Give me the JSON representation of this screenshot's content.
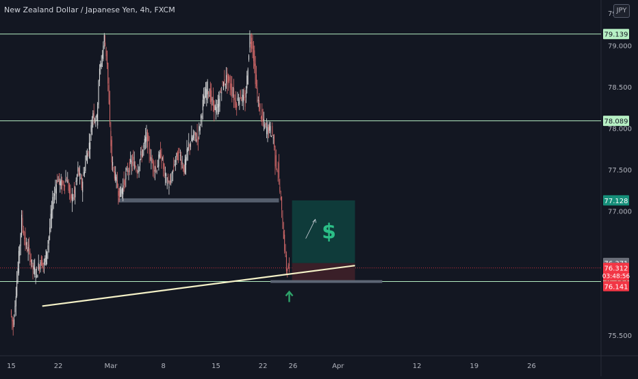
{
  "header": {
    "title": "New Zealand Dollar / Japanese Yen, 4h, FXCM",
    "currency_button": "JPY"
  },
  "colors": {
    "background": "#131722",
    "axis_text": "#b2b5be",
    "level_line": "#b7f0c4",
    "level_badge": "#b7f0c4",
    "up_candle": "#e6e6e6",
    "down_candle": "#d86b6b",
    "target_zone": "#0f3b3a",
    "stop_zone": "#3a1f28",
    "zone_border": "#5d6675",
    "trendline": "#f5f2c8",
    "arrow_up": "#2ea36a",
    "price_red": "#f23645",
    "last_price_bg": "#6b6f7a",
    "target_badge": "#168f7a"
  },
  "chart_data": {
    "type": "candlestick",
    "title": "New Zealand Dollar / Japanese Yen, 4h, FXCM",
    "ylim": [
      75.25,
      79.55
    ],
    "y_ticks": [
      "79.000",
      "78.500",
      "78.000",
      "77.500",
      "77.000",
      "75.500"
    ],
    "y_ticks_values": [
      79.0,
      78.5,
      78.0,
      77.5,
      77.0,
      75.5
    ],
    "y_top_partial_label": "79",
    "x_ticks": [
      "15",
      "22",
      "Mar",
      "8",
      "15",
      "22",
      "26",
      "Apr",
      "12",
      "19",
      "26"
    ],
    "x_tick_index": [
      0,
      50,
      106,
      162,
      218,
      268,
      300,
      348,
      432,
      493,
      554
    ],
    "xlim": [
      -12,
      628
    ],
    "horizontal_levels": [
      {
        "label": "79.139",
        "value": 79.139
      },
      {
        "label": "78.089",
        "value": 78.089
      },
      {
        "label": "76.147",
        "value": 76.147
      }
    ],
    "price_labels": [
      {
        "label": "77.128",
        "value": 77.128,
        "style": "target"
      },
      {
        "label": "76.371",
        "value": 76.371,
        "style": "last"
      },
      {
        "label": "76.312",
        "value": 76.312,
        "style": "current",
        "sub": "03:48:56"
      },
      {
        "label": "76.141",
        "value": 76.141,
        "style": "bid"
      }
    ],
    "current_price": 76.312,
    "support_zone": {
      "value": 77.128,
      "x0": 114,
      "x1": 285
    },
    "target_zone": {
      "y_top": 77.128,
      "y_bottom": 76.37,
      "x0": 299,
      "x1": 366
    },
    "stop_zone": {
      "y_top": 76.37,
      "y_bottom": 76.147,
      "x0": 299,
      "x1": 366
    },
    "entry_line": {
      "value": 76.147,
      "x0": 276,
      "x1": 395
    },
    "trendline": {
      "start": [
        33,
        75.85
      ],
      "end": [
        366,
        76.34
      ]
    },
    "anchors": [
      [
        0,
        75.8
      ],
      [
        3,
        75.6
      ],
      [
        5,
        75.9
      ],
      [
        8,
        76.3
      ],
      [
        12,
        76.9
      ],
      [
        16,
        76.6
      ],
      [
        20,
        76.5
      ],
      [
        24,
        76.3
      ],
      [
        28,
        76.25
      ],
      [
        32,
        76.4
      ],
      [
        36,
        76.35
      ],
      [
        40,
        76.6
      ],
      [
        45,
        77.1
      ],
      [
        50,
        77.4
      ],
      [
        55,
        77.3
      ],
      [
        60,
        77.4
      ],
      [
        64,
        77.15
      ],
      [
        68,
        77.2
      ],
      [
        72,
        77.5
      ],
      [
        76,
        77.3
      ],
      [
        80,
        77.6
      ],
      [
        84,
        77.8
      ],
      [
        88,
        78.2
      ],
      [
        92,
        78.1
      ],
      [
        94,
        78.6
      ],
      [
        98,
        78.9
      ],
      [
        100,
        79.1
      ],
      [
        103,
        78.8
      ],
      [
        106,
        78.0
      ],
      [
        108,
        77.6
      ],
      [
        112,
        77.4
      ],
      [
        116,
        77.2
      ],
      [
        120,
        77.3
      ],
      [
        125,
        77.5
      ],
      [
        130,
        77.6
      ],
      [
        135,
        77.5
      ],
      [
        140,
        77.7
      ],
      [
        145,
        77.9
      ],
      [
        150,
        77.6
      ],
      [
        155,
        77.5
      ],
      [
        160,
        77.7
      ],
      [
        165,
        77.4
      ],
      [
        170,
        77.3
      ],
      [
        175,
        77.6
      ],
      [
        180,
        77.7
      ],
      [
        185,
        77.5
      ],
      [
        190,
        77.8
      ],
      [
        195,
        77.9
      ],
      [
        200,
        77.9
      ],
      [
        205,
        78.3
      ],
      [
        210,
        78.5
      ],
      [
        215,
        78.3
      ],
      [
        220,
        78.2
      ],
      [
        225,
        78.5
      ],
      [
        230,
        78.6
      ],
      [
        235,
        78.5
      ],
      [
        240,
        78.3
      ],
      [
        245,
        78.4
      ],
      [
        250,
        78.3
      ],
      [
        252,
        78.6
      ],
      [
        255,
        79.1
      ],
      [
        258,
        79.0
      ],
      [
        261,
        78.6
      ],
      [
        264,
        78.3
      ],
      [
        268,
        78.1
      ],
      [
        272,
        78.0
      ],
      [
        276,
        78.0
      ],
      [
        280,
        77.9
      ],
      [
        282,
        77.6
      ],
      [
        285,
        77.5
      ],
      [
        288,
        77.1
      ],
      [
        291,
        76.7
      ],
      [
        294,
        76.3
      ],
      [
        296,
        76.31
      ]
    ]
  }
}
